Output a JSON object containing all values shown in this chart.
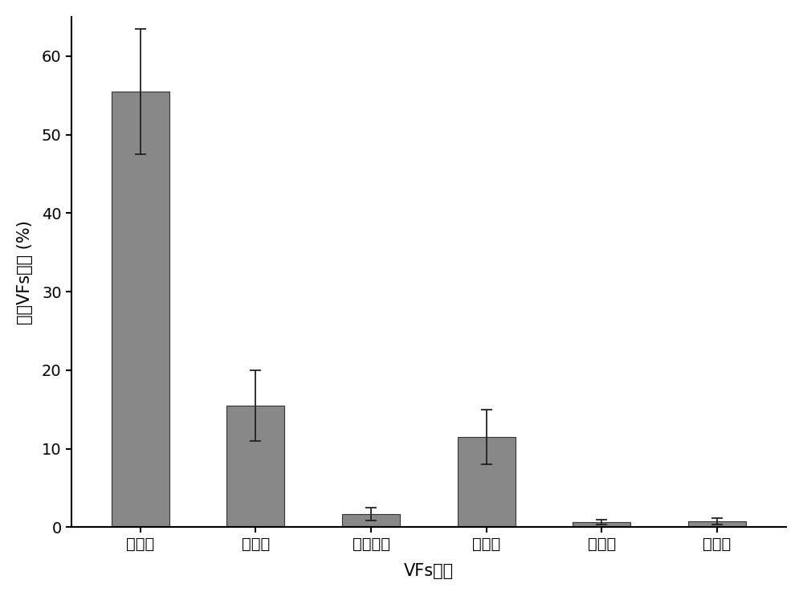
{
  "categories": [
    "进攻型",
    "运动型",
    "毒性蛋白",
    "防御型",
    "免疫型",
    "未知型"
  ],
  "values": [
    55.5,
    15.5,
    1.7,
    11.5,
    0.7,
    0.8
  ],
  "errors": [
    8.0,
    4.5,
    0.8,
    3.5,
    0.3,
    0.4
  ],
  "bar_color": "#888888",
  "bar_edgecolor": "#333333",
  "ylabel": "占总VFs比例 (%)",
  "xlabel": "VFs类型",
  "ylim": [
    0,
    65
  ],
  "yticks": [
    0,
    10,
    20,
    30,
    40,
    50,
    60
  ],
  "background_color": "#ffffff",
  "bar_width": 0.5,
  "label_fontsize": 15,
  "tick_fontsize": 14
}
